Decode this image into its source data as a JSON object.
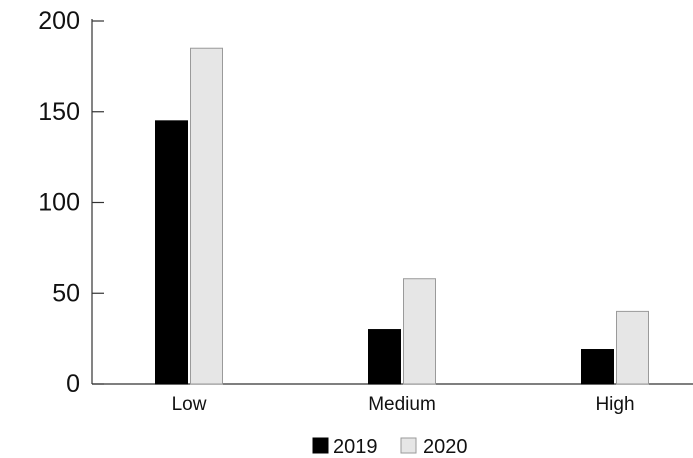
{
  "chart_data": {
    "type": "bar",
    "title": "",
    "xlabel": "",
    "ylabel": "",
    "categories": [
      "Low",
      "Medium",
      "High"
    ],
    "series": [
      {
        "name": "2019",
        "color": "#000000",
        "values": [
          145,
          30,
          19
        ]
      },
      {
        "name": "2020",
        "color": "#e6e6e6",
        "values": [
          185,
          58,
          40
        ]
      }
    ],
    "ylim": [
      0,
      200
    ],
    "yticks": [
      0,
      50,
      100,
      150,
      200
    ],
    "ytick_labels": [
      "0",
      "50",
      "100",
      "150",
      "200"
    ],
    "grid": false,
    "legend": "bottom-center"
  }
}
